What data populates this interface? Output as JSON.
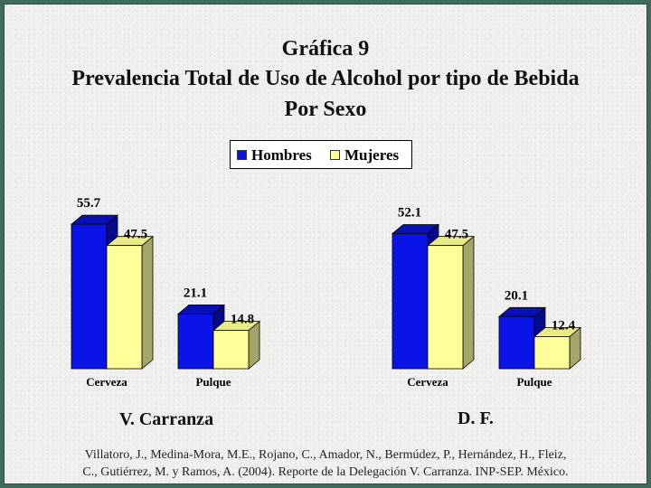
{
  "slide": {
    "title_line1": "Gráfica 9",
    "title_line2": "Prevalencia Total de Uso de Alcohol por tipo de Bebida",
    "title_line3": "Por Sexo",
    "source_line1": "Villatoro, J., Medina-Mora, M.E., Rojano, C., Amador, N., Bermúdez, P., Hernández, H., Fleiz,",
    "source_line2": "C., Gutiérrez, M. y Ramos, A. (2004). Reporte de la Delegación V. Carranza. INP-SEP. México."
  },
  "legend": {
    "position": "top-center",
    "items": [
      {
        "label": "Hombres",
        "color": "#0a14e8"
      },
      {
        "label": "Mujeres",
        "color": "#ffff99"
      }
    ]
  },
  "chart_data": [
    {
      "type": "bar",
      "title": "V. Carranza",
      "categories": [
        "Cerveza",
        "Pulque"
      ],
      "series": [
        {
          "name": "Hombres",
          "values": [
            55.7,
            21.1
          ],
          "color": "#0a14e8"
        },
        {
          "name": "Mujeres",
          "values": [
            47.5,
            14.8
          ],
          "color": "#ffff99"
        }
      ],
      "ylim": [
        0,
        60
      ],
      "grid": false,
      "three_d": true
    },
    {
      "type": "bar",
      "title": "D. F.",
      "categories": [
        "Cerveza",
        "Pulque"
      ],
      "series": [
        {
          "name": "Hombres",
          "values": [
            52.1,
            20.1
          ],
          "color": "#0a14e8"
        },
        {
          "name": "Mujeres",
          "values": [
            47.5,
            12.4
          ],
          "color": "#ffff99"
        }
      ],
      "ylim": [
        0,
        60
      ],
      "grid": false,
      "three_d": true
    }
  ]
}
